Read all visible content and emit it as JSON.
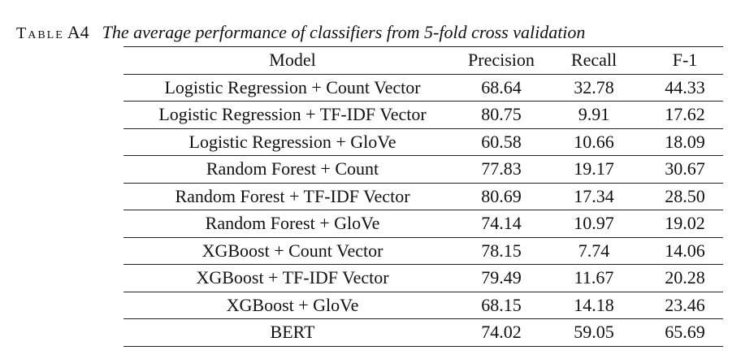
{
  "caption": {
    "label": "Table",
    "number": "A4",
    "title": "The average performance of classifiers from 5-fold cross validation"
  },
  "table": {
    "headers": [
      "Model",
      "Precision",
      "Recall",
      "F-1"
    ],
    "rows": [
      {
        "model": "Logistic Regression + Count Vector",
        "precision": "68.64",
        "recall": "32.78",
        "f1": "44.33"
      },
      {
        "model": "Logistic Regression + TF-IDF Vector",
        "precision": "80.75",
        "recall": "9.91",
        "f1": "17.62"
      },
      {
        "model": "Logistic Regression + GloVe",
        "precision": "60.58",
        "recall": "10.66",
        "f1": "18.09"
      },
      {
        "model": "Random Forest + Count",
        "precision": "77.83",
        "recall": "19.17",
        "f1": "30.67"
      },
      {
        "model": "Random Forest + TF-IDF Vector",
        "precision": "80.69",
        "recall": "17.34",
        "f1": "28.50"
      },
      {
        "model": "Random Forest + GloVe",
        "precision": "74.14",
        "recall": "10.97",
        "f1": "19.02"
      },
      {
        "model": "XGBoost + Count Vector",
        "precision": "78.15",
        "recall": "7.74",
        "f1": "14.06"
      },
      {
        "model": "XGBoost + TF-IDF Vector",
        "precision": "79.49",
        "recall": "11.67",
        "f1": "20.28"
      },
      {
        "model": "XGBoost + GloVe",
        "precision": "68.15",
        "recall": "14.18",
        "f1": "23.46"
      },
      {
        "model": "BERT",
        "precision": "74.02",
        "recall": "59.05",
        "f1": "65.69"
      }
    ]
  }
}
